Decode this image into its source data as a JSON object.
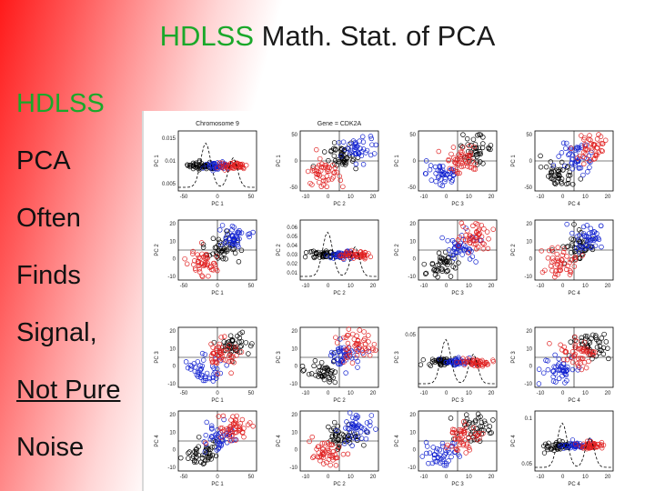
{
  "slide": {
    "title_accent": "HDLSS",
    "title_rest": " Math. Stat. of PCA",
    "bullets": [
      "HDLSS",
      "PCA",
      "Often",
      "Finds",
      "Signal,",
      "Not Pure",
      "Noise"
    ]
  },
  "colors": {
    "accent_green": "#1aa82a",
    "series_red": "#e02020",
    "series_blue": "#1020d0",
    "series_black": "#000000"
  },
  "figure": {
    "top_titles": [
      "Chromosome 9",
      "Gene = CDK2A"
    ],
    "axis_labels": [
      "PC 1",
      "PC 2",
      "PC 3",
      "PC 4"
    ],
    "tick_labels": {
      "density_pc1_y": [
        "0.015",
        "0.01",
        "0.005"
      ],
      "density_pc2_y": [
        "0.06",
        "0.05",
        "0.04",
        "0.03",
        "0.02",
        "0.01"
      ],
      "density_pc3_y": [
        "0.05"
      ],
      "density_pc4_y": [
        "0.1",
        "0.05"
      ],
      "pc1_y": [
        "50",
        "0",
        "-50"
      ],
      "pc2_y": [
        "20",
        "10",
        "0",
        "-10"
      ],
      "pc3_y": [
        "20",
        "10",
        "0",
        "-10"
      ],
      "pc4_y": [
        "20",
        "10",
        "0",
        "-10"
      ],
      "pc1_x": [
        "-50",
        "0",
        "50"
      ],
      "pc2_x": [
        "-10",
        "0",
        "10",
        "20"
      ],
      "pc3_x": [
        "-10",
        "0",
        "10",
        "20"
      ],
      "pc4_x": [
        "-10",
        "0",
        "10",
        "20"
      ]
    }
  }
}
